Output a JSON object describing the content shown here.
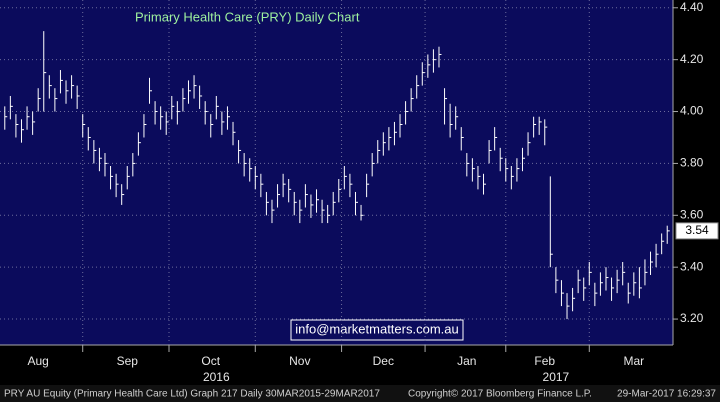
{
  "chart_data": {
    "type": "ohlc",
    "title": "Primary Health Care (PRY) Daily Chart",
    "annotation": "info@marketmatters.com.au",
    "footer": [
      "PRY AU Equity (Primary Health Care Ltd) Graph 217  Daily 30MAR2015-29MAR2017",
      "Copyright© 2017 Bloomberg Finance L.P.",
      "29-Mar-2017 16:29:37"
    ],
    "color": "#ffffff",
    "ylim": [
      3.1,
      4.43
    ],
    "yticks": [
      {
        "value": 3.2,
        "label": "3.20"
      },
      {
        "value": 3.4,
        "label": "3.40"
      },
      {
        "value": 3.6,
        "label": "3.60"
      },
      {
        "value": 3.8,
        "label": "3.80"
      },
      {
        "value": 4.0,
        "label": "4.00"
      },
      {
        "value": 4.2,
        "label": "4.20"
      },
      {
        "value": 4.4,
        "label": "4.40"
      }
    ],
    "xticks": [
      {
        "value": 6,
        "label": "Aug"
      },
      {
        "value": 22,
        "label": "Sep"
      },
      {
        "value": 37,
        "label": "Oct"
      },
      {
        "value": 53,
        "label": "Nov"
      },
      {
        "value": 68,
        "label": "Dec"
      },
      {
        "value": 83,
        "label": "Jan"
      },
      {
        "value": 97,
        "label": "Feb"
      },
      {
        "value": 113,
        "label": "Mar"
      }
    ],
    "year_ticks": [
      {
        "value": 38,
        "label": "2016"
      },
      {
        "value": 99,
        "label": "2017"
      }
    ],
    "grid": true,
    "high": [
      4.02,
      4.06,
      3.99,
      3.97,
      4.02,
      4.0,
      4.09,
      4.31,
      4.14,
      4.09,
      4.16,
      4.12,
      4.14,
      4.1,
      3.99,
      3.94,
      3.89,
      3.86,
      3.84,
      3.79,
      3.76,
      3.72,
      3.79,
      3.84,
      3.92,
      3.99,
      4.13,
      4.04,
      4.02,
      4.0,
      4.06,
      4.04,
      4.09,
      4.12,
      4.14,
      4.1,
      4.04,
      3.99,
      4.06,
      4.0,
      4.02,
      3.96,
      3.89,
      3.84,
      3.82,
      3.79,
      3.76,
      3.69,
      3.66,
      3.72,
      3.76,
      3.74,
      3.69,
      3.66,
      3.72,
      3.68,
      3.7,
      3.66,
      3.64,
      3.69,
      3.74,
      3.79,
      3.76,
      3.69,
      3.64,
      3.76,
      3.84,
      3.89,
      3.92,
      3.94,
      3.96,
      3.99,
      4.04,
      4.09,
      4.14,
      4.19,
      4.22,
      4.24,
      4.25,
      4.09,
      4.03,
      4.02,
      3.94,
      3.84,
      3.82,
      3.79,
      3.76,
      3.89,
      3.94,
      3.86,
      3.82,
      3.79,
      3.82,
      3.86,
      3.92,
      3.98,
      3.98,
      3.97,
      3.75,
      3.4,
      3.35,
      3.3,
      3.32,
      3.39,
      3.36,
      3.42,
      3.34,
      3.38,
      3.4,
      3.36,
      3.39,
      3.42,
      3.34,
      3.38,
      3.4,
      3.43,
      3.46,
      3.49,
      3.53,
      3.56
    ],
    "low": [
      3.93,
      3.97,
      3.9,
      3.88,
      3.93,
      3.91,
      4.0,
      4.0,
      4.05,
      4.0,
      4.07,
      4.03,
      4.05,
      4.01,
      3.9,
      3.85,
      3.8,
      3.77,
      3.75,
      3.7,
      3.67,
      3.64,
      3.7,
      3.75,
      3.83,
      3.9,
      4.03,
      3.95,
      3.93,
      3.91,
      3.97,
      3.95,
      4.0,
      4.03,
      4.05,
      4.01,
      3.95,
      3.9,
      3.97,
      3.91,
      3.93,
      3.87,
      3.8,
      3.75,
      3.73,
      3.7,
      3.67,
      3.6,
      3.57,
      3.63,
      3.67,
      3.65,
      3.6,
      3.57,
      3.63,
      3.59,
      3.61,
      3.57,
      3.57,
      3.6,
      3.65,
      3.7,
      3.67,
      3.6,
      3.58,
      3.67,
      3.75,
      3.8,
      3.83,
      3.85,
      3.87,
      3.9,
      3.95,
      4.0,
      4.05,
      4.1,
      4.13,
      4.15,
      4.17,
      3.95,
      3.9,
      3.93,
      3.85,
      3.75,
      3.73,
      3.7,
      3.68,
      3.8,
      3.85,
      3.77,
      3.73,
      3.7,
      3.73,
      3.77,
      3.83,
      3.9,
      3.91,
      3.87,
      3.4,
      3.3,
      3.25,
      3.2,
      3.23,
      3.3,
      3.27,
      3.33,
      3.25,
      3.29,
      3.31,
      3.27,
      3.3,
      3.33,
      3.26,
      3.29,
      3.28,
      3.33,
      3.37,
      3.4,
      3.45,
      3.49
    ],
    "close": [
      3.98,
      4.02,
      3.95,
      3.93,
      3.98,
      3.96,
      4.05,
      4.15,
      4.1,
      4.05,
      4.12,
      4.08,
      4.1,
      4.06,
      3.95,
      3.9,
      3.85,
      3.82,
      3.8,
      3.75,
      3.72,
      3.68,
      3.75,
      3.8,
      3.88,
      3.95,
      4.08,
      4.0,
      3.98,
      3.96,
      4.02,
      4.0,
      4.05,
      4.08,
      4.1,
      4.06,
      4.0,
      3.95,
      4.02,
      3.96,
      3.98,
      3.92,
      3.85,
      3.8,
      3.78,
      3.75,
      3.72,
      3.65,
      3.62,
      3.68,
      3.72,
      3.7,
      3.65,
      3.62,
      3.68,
      3.64,
      3.66,
      3.62,
      3.6,
      3.65,
      3.7,
      3.75,
      3.72,
      3.65,
      3.6,
      3.72,
      3.8,
      3.85,
      3.88,
      3.9,
      3.92,
      3.95,
      4.0,
      4.05,
      4.1,
      4.15,
      4.18,
      4.2,
      4.22,
      4.05,
      3.95,
      3.98,
      3.9,
      3.8,
      3.78,
      3.75,
      3.72,
      3.85,
      3.9,
      3.82,
      3.78,
      3.75,
      3.78,
      3.82,
      3.88,
      3.95,
      3.96,
      3.94,
      3.45,
      3.35,
      3.3,
      3.25,
      3.28,
      3.35,
      3.32,
      3.38,
      3.3,
      3.34,
      3.36,
      3.32,
      3.35,
      3.38,
      3.3,
      3.34,
      3.32,
      3.38,
      3.42,
      3.45,
      3.5,
      3.54
    ]
  }
}
